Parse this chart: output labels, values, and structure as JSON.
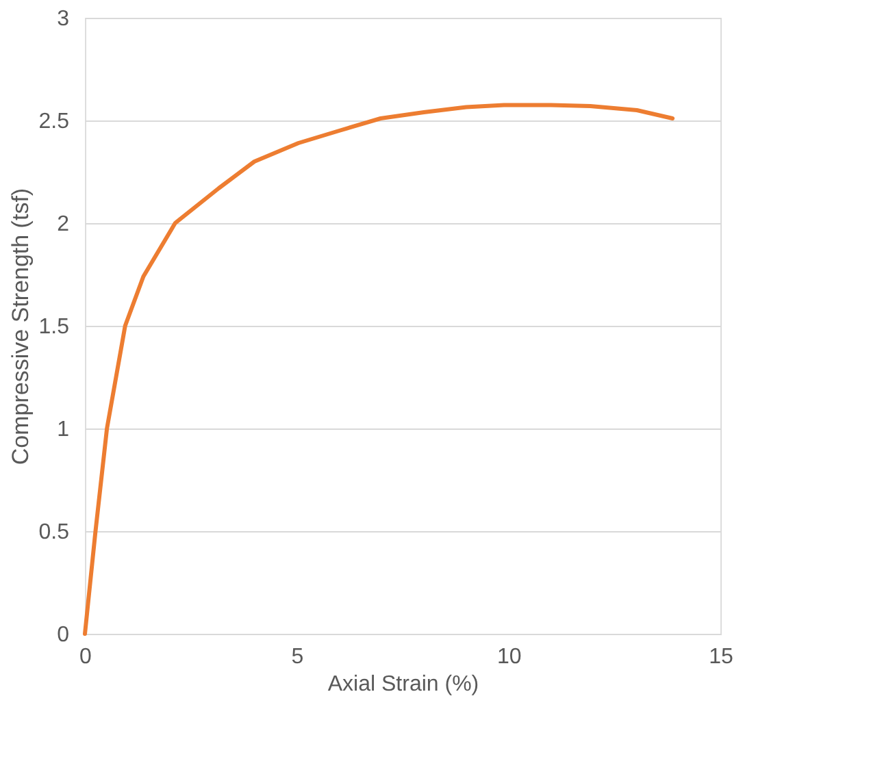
{
  "chart_data": {
    "type": "line",
    "xlabel": "Axial Strain (%)",
    "ylabel": "Compressive Strength (tsf)",
    "series": [
      {
        "color": "#ed7d31",
        "x": [
          0,
          0.25,
          0.52,
          0.95,
          1.38,
          2.13,
          3.16,
          4,
          5.04,
          6,
          6.98,
          8,
          9,
          9.89,
          11,
          11.93,
          13.03,
          13.87
        ],
        "values": [
          0,
          0.5,
          1,
          1.5,
          1.74,
          2,
          2.17,
          2.3,
          2.39,
          2.45,
          2.51,
          2.54,
          2.565,
          2.575,
          2.575,
          2.57,
          2.55,
          2.51
        ]
      }
    ],
    "xlim": [
      0,
      15
    ],
    "xticks": [
      0,
      5,
      10,
      15
    ],
    "ylim": [
      0,
      3
    ],
    "yticks": [
      0,
      0.5,
      1,
      1.5,
      2,
      2.5,
      3
    ],
    "grid": "y",
    "marker": "none",
    "line_style": "solid"
  }
}
